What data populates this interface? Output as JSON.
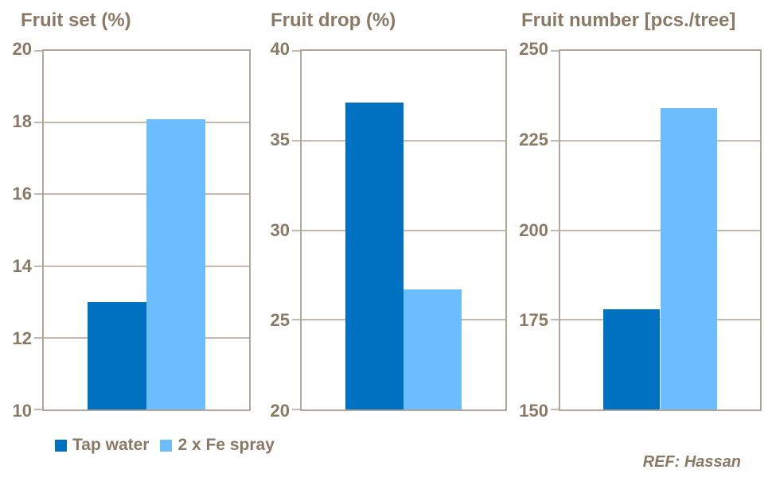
{
  "page": {
    "background": "#FFFFFF",
    "ref_text": "REF: Hassan"
  },
  "colors": {
    "series_tap_water": "#0070C0",
    "series_fe_spray": "#6CBDFB",
    "text": "#897965",
    "grid_line": "#C3B9AE",
    "plot_border": "#B1A69A"
  },
  "legend": {
    "items": [
      {
        "label": "Tap water",
        "color": "#0070C0"
      },
      {
        "label": "2 x Fe spray",
        "color": "#6CBDFB"
      }
    ]
  },
  "chart_data": [
    {
      "type": "bar",
      "title": "Fruit set (%)",
      "categories": [
        "Tap water",
        "2 x Fe spray"
      ],
      "series": [
        {
          "name": "Tap water",
          "value": 13.0,
          "color": "#0070C0"
        },
        {
          "name": "2 x Fe spray",
          "value": 18.1,
          "color": "#6CBDFB"
        }
      ],
      "ylim": [
        10,
        20
      ],
      "yticks": [
        20,
        18,
        16,
        14,
        12,
        10
      ],
      "grid": true,
      "legend_position": "below-left"
    },
    {
      "type": "bar",
      "title": "Fruit drop (%)",
      "categories": [
        "Tap water",
        "2 x Fe spray"
      ],
      "series": [
        {
          "name": "Tap water",
          "value": 37.1,
          "color": "#0070C0"
        },
        {
          "name": "2 x Fe spray",
          "value": 26.7,
          "color": "#6CBDFB"
        }
      ],
      "ylim": [
        20,
        40
      ],
      "yticks": [
        40,
        35,
        30,
        25,
        20
      ],
      "grid": true,
      "legend_position": "none"
    },
    {
      "type": "bar",
      "title": "Fruit number [pcs./tree]",
      "categories": [
        "Tap water",
        "2 x Fe spray"
      ],
      "series": [
        {
          "name": "Tap water",
          "value": 178,
          "color": "#0070C0"
        },
        {
          "name": "2 x Fe spray",
          "value": 234,
          "color": "#6CBDFB"
        }
      ],
      "ylim": [
        150,
        250
      ],
      "yticks": [
        250,
        225,
        200,
        175,
        150
      ],
      "grid": true,
      "legend_position": "none"
    }
  ]
}
